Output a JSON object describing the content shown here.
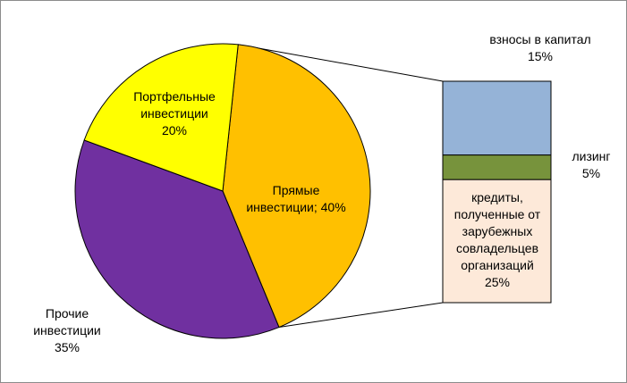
{
  "chart_data": {
    "type": "bar-of-pie",
    "pie": {
      "slices": [
        {
          "label": "Прямые\nинвестиции; 40%",
          "value": 40,
          "color": "#FFC000"
        },
        {
          "label": "Прочие\nинвестиции\n35%",
          "value": 35,
          "color": "#7030A0"
        },
        {
          "label": "Портфельные\nинвестиции\n20%",
          "value": 20,
          "color": "#FFFF00"
        }
      ]
    },
    "bar": {
      "segments": [
        {
          "label": "взносы в капитал\n15%",
          "value": 15,
          "color": "#95B3D7"
        },
        {
          "label": "лизинг\n5%",
          "value": 5,
          "color": "#77933C"
        },
        {
          "label": "кредиты,\nполученные от\nзарубежных\nсовладельцев\nорганизаций\n25%",
          "value": 25,
          "color": "#FDE9D9"
        }
      ]
    }
  }
}
